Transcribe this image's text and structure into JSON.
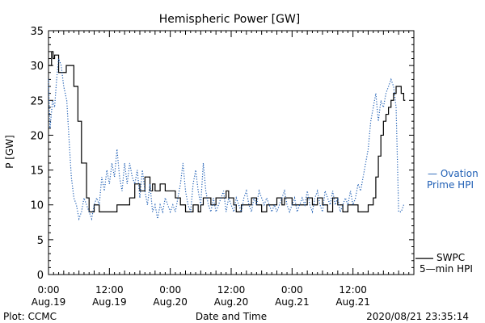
{
  "chart_data": {
    "type": "line",
    "title": "Hemispheric Power [GW]",
    "xlabel": "Date and Time",
    "ylabel": "P [GW]",
    "x_unit": "hours",
    "xlim": [
      0,
      72
    ],
    "ylim": [
      0,
      35
    ],
    "yticks": [
      0,
      5,
      10,
      15,
      20,
      25,
      30,
      35
    ],
    "xticks": [
      {
        "x": 0,
        "time": "0:00",
        "date": "Aug.19"
      },
      {
        "x": 12,
        "time": "12:00",
        "date": "Aug.19"
      },
      {
        "x": 24,
        "time": "0:00",
        "date": "Aug.20"
      },
      {
        "x": 36,
        "time": "12:00",
        "date": "Aug.20"
      },
      {
        "x": 48,
        "time": "0:00",
        "date": "Aug.21"
      },
      {
        "x": 60,
        "time": "12:00",
        "date": "Aug.21"
      }
    ],
    "series": [
      {
        "name": "SWPC 5-min HPI",
        "label_lines": [
          "SWPC",
          "5—min HPI"
        ],
        "color": "#000000",
        "style": "step",
        "points": [
          [
            0,
            30
          ],
          [
            0.6,
            32
          ],
          [
            0.9,
            31
          ],
          [
            1.2,
            31.5
          ],
          [
            2,
            29
          ],
          [
            3.5,
            30
          ],
          [
            4.5,
            30
          ],
          [
            5,
            27
          ],
          [
            5.8,
            22
          ],
          [
            6.5,
            16
          ],
          [
            7.5,
            11
          ],
          [
            8,
            9
          ],
          [
            9,
            10
          ],
          [
            10,
            9
          ],
          [
            13.5,
            10
          ],
          [
            16,
            11
          ],
          [
            17,
            13
          ],
          [
            18,
            12
          ],
          [
            19,
            14
          ],
          [
            20,
            12
          ],
          [
            20.5,
            13
          ],
          [
            21,
            12
          ],
          [
            22,
            13
          ],
          [
            23,
            12
          ],
          [
            25,
            11
          ],
          [
            26,
            10
          ],
          [
            27,
            9
          ],
          [
            28.5,
            10
          ],
          [
            29.5,
            9
          ],
          [
            30,
            10
          ],
          [
            30.5,
            11
          ],
          [
            32,
            10
          ],
          [
            33,
            11
          ],
          [
            35,
            12
          ],
          [
            35.5,
            11
          ],
          [
            36.5,
            10
          ],
          [
            37,
            9
          ],
          [
            38,
            10
          ],
          [
            40,
            11
          ],
          [
            41,
            10
          ],
          [
            42,
            9
          ],
          [
            43,
            10
          ],
          [
            45,
            11
          ],
          [
            46,
            10
          ],
          [
            46.5,
            11
          ],
          [
            48,
            10
          ],
          [
            51,
            11
          ],
          [
            52,
            10
          ],
          [
            53,
            11
          ],
          [
            54,
            10
          ],
          [
            55,
            9
          ],
          [
            56,
            11
          ],
          [
            57,
            10
          ],
          [
            58,
            9
          ],
          [
            59,
            10
          ],
          [
            61,
            9
          ],
          [
            63,
            10
          ],
          [
            64,
            11
          ],
          [
            64.5,
            14
          ],
          [
            65,
            17
          ],
          [
            65.5,
            20
          ],
          [
            66,
            22
          ],
          [
            66.5,
            23
          ],
          [
            67,
            24
          ],
          [
            67.5,
            25
          ],
          [
            68,
            26
          ],
          [
            68.5,
            27
          ],
          [
            69.5,
            26
          ],
          [
            70,
            25
          ]
        ]
      },
      {
        "name": "Ovation Prime HPI",
        "label_lines": [
          "— Ovation",
          "Prime HPI"
        ],
        "color": "#1f5fb5",
        "style": "dotted",
        "points": [
          [
            0,
            28
          ],
          [
            0.3,
            21
          ],
          [
            0.8,
            25
          ],
          [
            1.2,
            24
          ],
          [
            1.6,
            28
          ],
          [
            2,
            31
          ],
          [
            2.5,
            30
          ],
          [
            3,
            27
          ],
          [
            3.6,
            25
          ],
          [
            4,
            20
          ],
          [
            4.5,
            14
          ],
          [
            5,
            11
          ],
          [
            5.5,
            10
          ],
          [
            6,
            8
          ],
          [
            6.5,
            9
          ],
          [
            7,
            11
          ],
          [
            7.5,
            10
          ],
          [
            8,
            9
          ],
          [
            8.5,
            8
          ],
          [
            9,
            10
          ],
          [
            9.5,
            11
          ],
          [
            10,
            10
          ],
          [
            10.5,
            14
          ],
          [
            11,
            12
          ],
          [
            11.5,
            15
          ],
          [
            12,
            13
          ],
          [
            12.5,
            16
          ],
          [
            13,
            14
          ],
          [
            13.5,
            18
          ],
          [
            14,
            14
          ],
          [
            14.5,
            12
          ],
          [
            15,
            16
          ],
          [
            15.5,
            13
          ],
          [
            16,
            16
          ],
          [
            16.5,
            14
          ],
          [
            17,
            13
          ],
          [
            17.5,
            15
          ],
          [
            18,
            11
          ],
          [
            18.5,
            15
          ],
          [
            19,
            12
          ],
          [
            19.5,
            10
          ],
          [
            20,
            13
          ],
          [
            20.5,
            9
          ],
          [
            21,
            10
          ],
          [
            21.5,
            8
          ],
          [
            22,
            10
          ],
          [
            22.5,
            9
          ],
          [
            23,
            11
          ],
          [
            23.5,
            10
          ],
          [
            24,
            9
          ],
          [
            24.5,
            10
          ],
          [
            25,
            9
          ],
          [
            25.5,
            11
          ],
          [
            26,
            13
          ],
          [
            26.5,
            16
          ],
          [
            27,
            12
          ],
          [
            27.5,
            10
          ],
          [
            28,
            9
          ],
          [
            28.5,
            13
          ],
          [
            29,
            15
          ],
          [
            29.5,
            12
          ],
          [
            30,
            10
          ],
          [
            30.5,
            16
          ],
          [
            31,
            12
          ],
          [
            31.5,
            10
          ],
          [
            32,
            9
          ],
          [
            32.5,
            11
          ],
          [
            33,
            9
          ],
          [
            33.5,
            10
          ],
          [
            34,
            11
          ],
          [
            34.5,
            12
          ],
          [
            35,
            9
          ],
          [
            35.5,
            11
          ],
          [
            36,
            10
          ],
          [
            36.5,
            9
          ],
          [
            37,
            11
          ],
          [
            37.5,
            10
          ],
          [
            38,
            9
          ],
          [
            38.5,
            11
          ],
          [
            39,
            12
          ],
          [
            39.5,
            10
          ],
          [
            40,
            9
          ],
          [
            40.5,
            11
          ],
          [
            41,
            10
          ],
          [
            41.5,
            12
          ],
          [
            42,
            11
          ],
          [
            42.5,
            10
          ],
          [
            43,
            11
          ],
          [
            43.5,
            10
          ],
          [
            44,
            9
          ],
          [
            44.5,
            10
          ],
          [
            45,
            9
          ],
          [
            45.5,
            10
          ],
          [
            46,
            11
          ],
          [
            46.5,
            12
          ],
          [
            47,
            10
          ],
          [
            47.5,
            9
          ],
          [
            48,
            10
          ],
          [
            48.5,
            11
          ],
          [
            49,
            9
          ],
          [
            49.5,
            10
          ],
          [
            50,
            11
          ],
          [
            50.5,
            10
          ],
          [
            51,
            12
          ],
          [
            51.5,
            10
          ],
          [
            52,
            9
          ],
          [
            52.5,
            11
          ],
          [
            53,
            12
          ],
          [
            53.5,
            10
          ],
          [
            54,
            9
          ],
          [
            54.5,
            12
          ],
          [
            55,
            11
          ],
          [
            55.5,
            10
          ],
          [
            56,
            12
          ],
          [
            56.5,
            10
          ],
          [
            57,
            11
          ],
          [
            57.5,
            9
          ],
          [
            58,
            10
          ],
          [
            58.5,
            11
          ],
          [
            59,
            10
          ],
          [
            59.5,
            12
          ],
          [
            60,
            10
          ],
          [
            60.5,
            11
          ],
          [
            61,
            13
          ],
          [
            61.5,
            12
          ],
          [
            62,
            14
          ],
          [
            62.5,
            16
          ],
          [
            63,
            18
          ],
          [
            63.5,
            22
          ],
          [
            64,
            24
          ],
          [
            64.5,
            26
          ],
          [
            65,
            22
          ],
          [
            65.5,
            25
          ],
          [
            66,
            24
          ],
          [
            66.5,
            26
          ],
          [
            67,
            27
          ],
          [
            67.5,
            28
          ],
          [
            68,
            27
          ],
          [
            68.5,
            24
          ],
          [
            69,
            9
          ],
          [
            69.5,
            9
          ],
          [
            70,
            10
          ]
        ]
      }
    ]
  },
  "footer": {
    "left": "Plot: CCMC",
    "center": "Date and Time",
    "right": "2020/08/21 23:35:14"
  }
}
